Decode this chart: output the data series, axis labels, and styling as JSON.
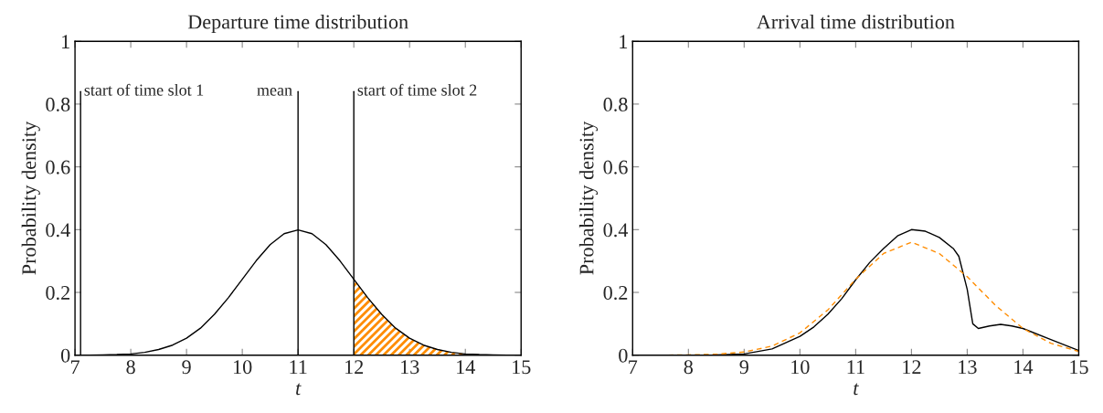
{
  "chart_data": [
    {
      "type": "line",
      "title": "Departure time distribution",
      "xlabel": "t",
      "ylabel": "Probability density",
      "xlim": [
        7,
        15
      ],
      "ylim": [
        0,
        1
      ],
      "xticks": [
        7,
        8,
        9,
        10,
        11,
        12,
        13,
        14,
        15
      ],
      "yticks": [
        0,
        0.2,
        0.4,
        0.6,
        0.8,
        1
      ],
      "grid": false,
      "legend": false,
      "x": [
        7,
        7.25,
        7.5,
        7.75,
        8,
        8.25,
        8.5,
        8.75,
        9,
        9.25,
        9.5,
        9.75,
        10,
        10.25,
        10.5,
        10.75,
        11,
        11.25,
        11.5,
        11.75,
        12,
        12.25,
        12.5,
        12.75,
        13,
        13.25,
        13.5,
        13.75,
        14,
        14.25,
        14.5,
        14.75,
        15
      ],
      "series": [
        {
          "color": "#000000",
          "values": [
            0,
            0,
            0.001,
            0.002,
            0.004,
            0.009,
            0.018,
            0.032,
            0.054,
            0.086,
            0.13,
            0.183,
            0.242,
            0.301,
            0.352,
            0.387,
            0.399,
            0.387,
            0.352,
            0.301,
            0.242,
            0.183,
            0.13,
            0.086,
            0.054,
            0.032,
            0.018,
            0.009,
            0.004,
            0.002,
            0.001,
            0,
            0
          ]
        },
        {
          "type": "area",
          "color": "#ff8c00",
          "x": [
            12,
            12.25,
            12.5,
            12.75,
            13,
            13.25,
            13.5,
            13.75,
            14,
            14.25,
            14.5,
            14.75,
            15
          ],
          "values": [
            0.242,
            0.183,
            0.13,
            0.086,
            0.054,
            0.032,
            0.018,
            0.009,
            0.004,
            0.002,
            0.001,
            0,
            0
          ]
        }
      ],
      "ref_lines": [
        {
          "axis": "x",
          "value": 7.1,
          "label": "start of time slot 1"
        },
        {
          "axis": "x",
          "value": 11,
          "label": "mean"
        },
        {
          "axis": "x",
          "value": 12,
          "label": "start of time slot 2"
        }
      ]
    },
    {
      "type": "line",
      "title": "Arrival time distribution",
      "xlabel": "t",
      "ylabel": "Probability density",
      "xlim": [
        7,
        15
      ],
      "ylim": [
        0,
        1
      ],
      "xticks": [
        7,
        8,
        9,
        10,
        11,
        12,
        13,
        14,
        15
      ],
      "yticks": [
        0,
        0.2,
        0.4,
        0.6,
        0.8,
        1
      ],
      "grid": false,
      "legend": false,
      "series": [
        {
          "color": "#000000",
          "x": [
            7,
            7.5,
            8,
            8.5,
            9,
            9.5,
            10,
            10.25,
            10.5,
            10.75,
            11,
            11.25,
            11.5,
            11.75,
            12,
            12.25,
            12.5,
            12.75,
            12.85,
            13,
            13.1,
            13.2,
            13.4,
            13.6,
            13.8,
            14,
            14.5,
            15
          ],
          "values": [
            0,
            0,
            0,
            0.001,
            0.004,
            0.02,
            0.06,
            0.09,
            0.13,
            0.18,
            0.24,
            0.295,
            0.34,
            0.38,
            0.4,
            0.395,
            0.375,
            0.34,
            0.315,
            0.21,
            0.1,
            0.085,
            0.093,
            0.098,
            0.093,
            0.085,
            0.05,
            0.015
          ]
        },
        {
          "color": "#ff8c00",
          "line_style": "dashed",
          "x": [
            7,
            7.5,
            8,
            8.5,
            9,
            9.5,
            10,
            10.5,
            11,
            11.5,
            12,
            12.5,
            13,
            13.5,
            14,
            14.5,
            15
          ],
          "values": [
            0,
            0,
            0.001,
            0.003,
            0.01,
            0.029,
            0.071,
            0.144,
            0.242,
            0.324,
            0.36,
            0.324,
            0.25,
            0.16,
            0.085,
            0.038,
            0.012
          ]
        }
      ]
    }
  ]
}
